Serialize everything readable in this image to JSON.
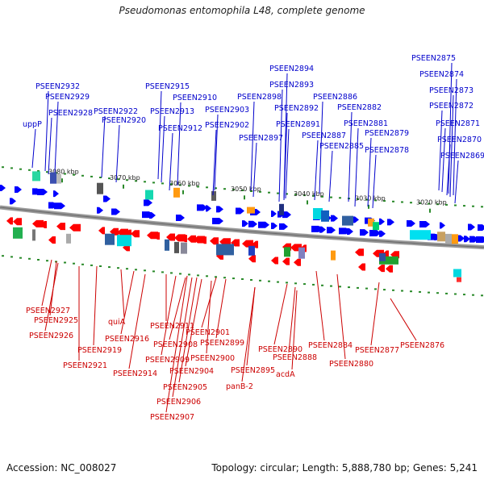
{
  "title": "Pseudomonas entomophila L48, complete genome",
  "footer": {
    "accession": "Accession: NC_008027",
    "summary": "Topology: circular; Length: 5,888,780 bp; Genes: 5,241"
  },
  "colors": {
    "forward": "#0000ff",
    "reverse": "#ff0000",
    "forward_label": "#0000cc",
    "reverse_label": "#cc0000",
    "backbone": "#888888"
  },
  "ticks": [
    "3080 kbp",
    "3070 kbp",
    "3060 kbp",
    "3050 kbp",
    "3040 kbp",
    "3030 kbp",
    "3020 kbp"
  ],
  "forward_labels": [
    "PSEEN2875",
    "PSEEN2894",
    "PSEEN2874",
    "PSEEN2932",
    "PSEEN2915",
    "PSEEN2893",
    "PSEEN2873",
    "PSEEN2929",
    "PSEEN2910",
    "PSEEN2898",
    "PSEEN2886",
    "PSEEN2922",
    "PSEEN2913",
    "PSEEN2903",
    "PSEEN2892",
    "PSEEN2882",
    "PSEEN2872",
    "PSEEN2928",
    "uppP",
    "PSEEN2920",
    "PSEEN2912",
    "PSEEN2902",
    "PSEEN2891",
    "PSEEN2881",
    "PSEEN2871",
    "PSEEN2897",
    "PSEEN2887",
    "PSEEN2879",
    "PSEEN2870",
    "PSEEN2885",
    "PSEEN2878",
    "PSEEN2869"
  ],
  "reverse_labels": [
    "PSEEN2927",
    "PSEEN2925",
    "PSEEN2926",
    "quiA",
    "PSEEN2916",
    "PSEEN2911",
    "PSEEN2901",
    "PSEEN2908",
    "PSEEN2899",
    "PSEEN2919",
    "PSEEN2890",
    "PSEEN2884",
    "PSEEN2877",
    "PSEEN2876",
    "PSEEN2900",
    "PSEEN2888",
    "PSEEN2909",
    "PSEEN2921",
    "PSEEN2880",
    "PSEEN2914",
    "PSEEN2904",
    "acdA",
    "PSEEN2895",
    "PSEEN2905",
    "panB-2",
    "PSEEN2906",
    "PSEEN2907"
  ]
}
